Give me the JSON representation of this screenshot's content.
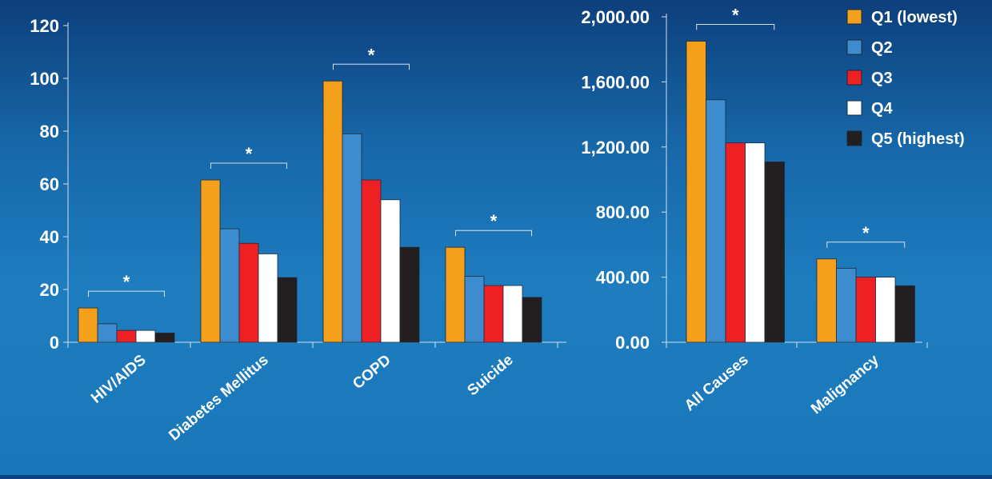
{
  "chart_data": [
    {
      "type": "bar",
      "title": "",
      "xlabel": "",
      "ylabel": "",
      "ylim": [
        0,
        120
      ],
      "y_ticks": [
        "0",
        "20",
        "40",
        "60",
        "80",
        "100",
        "120"
      ],
      "categories": [
        "HIV/AIDS",
        "Diabetes Mellitus",
        "COPD",
        "Suicide"
      ],
      "series": [
        {
          "name": "Q1 (lowest)",
          "color": "#f5a01a",
          "values": [
            13,
            61.5,
            99,
            36
          ]
        },
        {
          "name": "Q2",
          "color": "#3d8ccf",
          "values": [
            7,
            43,
            79,
            25
          ]
        },
        {
          "name": "Q3",
          "color": "#ee2024",
          "values": [
            4.5,
            37.5,
            61.5,
            21.5
          ]
        },
        {
          "name": "Q4",
          "color": "#ffffff",
          "values": [
            4.5,
            33.5,
            54,
            21.5
          ]
        },
        {
          "name": "Q5 (highest)",
          "color": "#231f20",
          "values": [
            3.5,
            24.5,
            36,
            17
          ]
        }
      ],
      "annotations": [
        "*",
        "*",
        "*",
        "*"
      ]
    },
    {
      "type": "bar",
      "title": "",
      "xlabel": "",
      "ylabel": "",
      "ylim": [
        0,
        2000
      ],
      "y_ticks": [
        "0.00",
        "400.00",
        "800.00",
        "1,200.00",
        "1,600.00",
        "2,000.00"
      ],
      "categories": [
        "All Causes",
        "Malignancy"
      ],
      "series": [
        {
          "name": "Q1 (lowest)",
          "color": "#f5a01a",
          "values": [
            1850,
            512
          ]
        },
        {
          "name": "Q2",
          "color": "#3d8ccf",
          "values": [
            1490,
            455
          ]
        },
        {
          "name": "Q3",
          "color": "#ee2024",
          "values": [
            1225,
            400
          ]
        },
        {
          "name": "Q4",
          "color": "#ffffff",
          "values": [
            1225,
            400
          ]
        },
        {
          "name": "Q5 (highest)",
          "color": "#231f20",
          "values": [
            1108,
            347
          ]
        }
      ],
      "annotations": [
        "*",
        "*"
      ]
    }
  ],
  "legend": {
    "placement": "top-right",
    "items": [
      "Q1 (lowest)",
      "Q2",
      "Q3",
      "Q4",
      "Q5 (highest)"
    ]
  }
}
